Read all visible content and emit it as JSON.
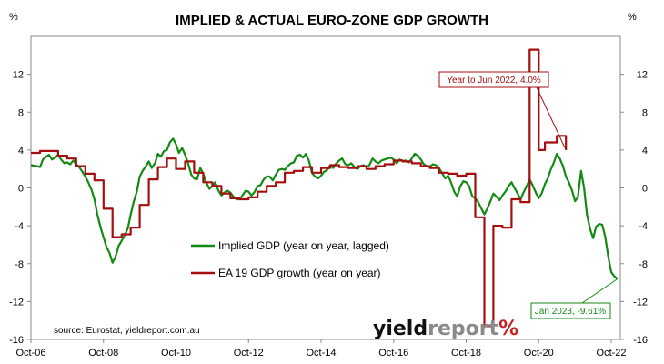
{
  "chart_data": {
    "type": "line",
    "title": "IMPLIED & ACTUAL EURO-ZONE GDP GROWTH",
    "ylabel_left": "%",
    "ylabel_right": "%",
    "ylim": [
      -16,
      16
    ],
    "yticks": [
      -16,
      -12,
      -8,
      -4,
      0,
      4,
      8,
      12
    ],
    "xlim": [
      2006.75,
      2023.0
    ],
    "xticks": [
      {
        "label": "Oct-06",
        "value": 2006.75
      },
      {
        "label": "Oct-08",
        "value": 2008.75
      },
      {
        "label": "Oct-10",
        "value": 2010.75
      },
      {
        "label": "Oct-12",
        "value": 2012.75
      },
      {
        "label": "Oct-14",
        "value": 2014.75
      },
      {
        "label": "Oct-16",
        "value": 2016.75
      },
      {
        "label": "Oct-18",
        "value": 2018.75
      },
      {
        "label": "Oct-20",
        "value": 2020.75
      },
      {
        "label": "Oct-22",
        "value": 2022.75
      }
    ],
    "legend": {
      "placement": "center-left"
    },
    "series": [
      {
        "name": "Implied GDP (year on year, lagged)",
        "color": "#138a13",
        "points": [
          [
            2006.75,
            2.4
          ],
          [
            2006.92,
            2.3
          ],
          [
            2007.0,
            2.2
          ],
          [
            2007.08,
            3.0
          ],
          [
            2007.17,
            3.3
          ],
          [
            2007.25,
            3.5
          ],
          [
            2007.33,
            3.0
          ],
          [
            2007.42,
            3.2
          ],
          [
            2007.5,
            3.5
          ],
          [
            2007.58,
            3.0
          ],
          [
            2007.67,
            2.6
          ],
          [
            2007.75,
            2.7
          ],
          [
            2007.83,
            2.5
          ],
          [
            2007.92,
            2.9
          ],
          [
            2008.0,
            2.5
          ],
          [
            2008.08,
            2.2
          ],
          [
            2008.17,
            1.7
          ],
          [
            2008.25,
            1.2
          ],
          [
            2008.33,
            0.6
          ],
          [
            2008.42,
            -0.2
          ],
          [
            2008.5,
            -1.2
          ],
          [
            2008.58,
            -2.8
          ],
          [
            2008.67,
            -4.2
          ],
          [
            2008.75,
            -5.2
          ],
          [
            2008.83,
            -6.2
          ],
          [
            2008.92,
            -6.9
          ],
          [
            2009.0,
            -7.9
          ],
          [
            2009.08,
            -7.3
          ],
          [
            2009.17,
            -6.1
          ],
          [
            2009.25,
            -5.6
          ],
          [
            2009.33,
            -5.0
          ],
          [
            2009.42,
            -4.3
          ],
          [
            2009.5,
            -2.8
          ],
          [
            2009.58,
            -1.5
          ],
          [
            2009.67,
            -0.4
          ],
          [
            2009.75,
            1.2
          ],
          [
            2009.83,
            1.8
          ],
          [
            2009.92,
            2.3
          ],
          [
            2010.0,
            2.8
          ],
          [
            2010.08,
            2.1
          ],
          [
            2010.17,
            2.6
          ],
          [
            2010.25,
            3.6
          ],
          [
            2010.33,
            3.3
          ],
          [
            2010.42,
            3.9
          ],
          [
            2010.5,
            4.0
          ],
          [
            2010.58,
            4.8
          ],
          [
            2010.67,
            5.2
          ],
          [
            2010.75,
            4.6
          ],
          [
            2010.83,
            3.7
          ],
          [
            2010.92,
            4.2
          ],
          [
            2011.0,
            3.5
          ],
          [
            2011.08,
            2.6
          ],
          [
            2011.17,
            1.4
          ],
          [
            2011.25,
            1.0
          ],
          [
            2011.33,
            0.9
          ],
          [
            2011.42,
            2.1
          ],
          [
            2011.5,
            1.5
          ],
          [
            2011.58,
            0.6
          ],
          [
            2011.67,
            -0.1
          ],
          [
            2011.75,
            0.2
          ],
          [
            2011.83,
            0.6
          ],
          [
            2011.92,
            -0.3
          ],
          [
            2012.0,
            -0.8
          ],
          [
            2012.08,
            -0.5
          ],
          [
            2012.17,
            -0.3
          ],
          [
            2012.25,
            -0.5
          ],
          [
            2012.33,
            -0.9
          ],
          [
            2012.42,
            -1.2
          ],
          [
            2012.5,
            -1.2
          ],
          [
            2012.58,
            -0.8
          ],
          [
            2012.67,
            -0.3
          ],
          [
            2012.75,
            -0.4
          ],
          [
            2012.83,
            -0.8
          ],
          [
            2012.92,
            -0.4
          ],
          [
            2013.0,
            0.2
          ],
          [
            2013.08,
            0.3
          ],
          [
            2013.17,
            0.9
          ],
          [
            2013.25,
            1.2
          ],
          [
            2013.33,
            1.2
          ],
          [
            2013.42,
            0.8
          ],
          [
            2013.5,
            1.4
          ],
          [
            2013.58,
            1.9
          ],
          [
            2013.67,
            2.0
          ],
          [
            2013.75,
            1.9
          ],
          [
            2013.83,
            2.3
          ],
          [
            2013.92,
            2.6
          ],
          [
            2014.0,
            2.7
          ],
          [
            2014.08,
            3.4
          ],
          [
            2014.17,
            3.5
          ],
          [
            2014.25,
            3.2
          ],
          [
            2014.33,
            3.6
          ],
          [
            2014.42,
            2.8
          ],
          [
            2014.5,
            1.6
          ],
          [
            2014.58,
            1.2
          ],
          [
            2014.67,
            1.0
          ],
          [
            2014.75,
            1.3
          ],
          [
            2014.83,
            1.7
          ],
          [
            2014.92,
            1.9
          ],
          [
            2015.0,
            2.4
          ],
          [
            2015.08,
            2.1
          ],
          [
            2015.17,
            2.6
          ],
          [
            2015.25,
            2.9
          ],
          [
            2015.33,
            3.1
          ],
          [
            2015.42,
            2.5
          ],
          [
            2015.5,
            2.4
          ],
          [
            2015.58,
            2.6
          ],
          [
            2015.67,
            2.2
          ],
          [
            2015.75,
            2.0
          ],
          [
            2015.83,
            2.3
          ],
          [
            2015.92,
            2.4
          ],
          [
            2016.0,
            2.2
          ],
          [
            2016.08,
            2.4
          ],
          [
            2016.17,
            3.1
          ],
          [
            2016.25,
            2.8
          ],
          [
            2016.33,
            2.6
          ],
          [
            2016.42,
            2.9
          ],
          [
            2016.5,
            3.0
          ],
          [
            2016.58,
            3.1
          ],
          [
            2016.67,
            3.2
          ],
          [
            2016.75,
            3.0
          ],
          [
            2016.83,
            2.6
          ],
          [
            2016.92,
            3.0
          ],
          [
            2017.0,
            2.8
          ],
          [
            2017.08,
            2.9
          ],
          [
            2017.17,
            2.7
          ],
          [
            2017.25,
            3.1
          ],
          [
            2017.33,
            3.6
          ],
          [
            2017.42,
            3.4
          ],
          [
            2017.5,
            3.0
          ],
          [
            2017.58,
            2.5
          ],
          [
            2017.67,
            2.3
          ],
          [
            2017.75,
            2.2
          ],
          [
            2017.83,
            2.5
          ],
          [
            2017.92,
            2.4
          ],
          [
            2018.0,
            2.1
          ],
          [
            2018.08,
            1.6
          ],
          [
            2018.17,
            1.0
          ],
          [
            2018.25,
            1.3
          ],
          [
            2018.33,
            0.6
          ],
          [
            2018.42,
            -0.4
          ],
          [
            2018.5,
            -0.9
          ],
          [
            2018.58,
            0.1
          ],
          [
            2018.67,
            0.7
          ],
          [
            2018.75,
            0.6
          ],
          [
            2018.83,
            0.2
          ],
          [
            2018.92,
            -0.9
          ],
          [
            2019.0,
            -1.1
          ],
          [
            2019.08,
            -1.5
          ],
          [
            2019.17,
            -2.2
          ],
          [
            2019.25,
            -2.8
          ],
          [
            2019.33,
            -2.2
          ],
          [
            2019.42,
            -1.4
          ],
          [
            2019.5,
            -0.6
          ],
          [
            2019.58,
            -0.9
          ],
          [
            2019.67,
            -1.3
          ],
          [
            2019.75,
            -0.8
          ],
          [
            2019.83,
            -0.4
          ],
          [
            2019.92,
            0.2
          ],
          [
            2020.0,
            0.6
          ],
          [
            2020.08,
            0.0
          ],
          [
            2020.17,
            -0.6
          ],
          [
            2020.25,
            -1.2
          ],
          [
            2020.33,
            -0.5
          ],
          [
            2020.42,
            0.2
          ],
          [
            2020.5,
            0.9
          ],
          [
            2020.58,
            0.3
          ],
          [
            2020.67,
            -0.5
          ],
          [
            2020.75,
            -1.1
          ],
          [
            2020.83,
            -0.6
          ],
          [
            2020.92,
            0.4
          ],
          [
            2021.0,
            1.0
          ],
          [
            2021.08,
            1.9
          ],
          [
            2021.17,
            2.7
          ],
          [
            2021.25,
            3.6
          ],
          [
            2021.33,
            3.1
          ],
          [
            2021.42,
            2.3
          ],
          [
            2021.5,
            1.2
          ],
          [
            2021.58,
            0.6
          ],
          [
            2021.67,
            -0.3
          ],
          [
            2021.75,
            -1.4
          ],
          [
            2021.83,
            -1.0
          ],
          [
            2021.92,
            1.8
          ],
          [
            2022.0,
            0.0
          ],
          [
            2022.08,
            -2.8
          ],
          [
            2022.17,
            -4.4
          ],
          [
            2022.25,
            -5.3
          ],
          [
            2022.33,
            -4.1
          ],
          [
            2022.42,
            -3.8
          ],
          [
            2022.5,
            -3.9
          ],
          [
            2022.58,
            -5.1
          ],
          [
            2022.67,
            -7.3
          ],
          [
            2022.75,
            -8.9
          ],
          [
            2022.83,
            -9.3
          ],
          [
            2022.92,
            -9.61
          ]
        ]
      },
      {
        "name": "EA 19 GDP growth (year on year)",
        "color": "#a50e0e",
        "points": [
          [
            2006.75,
            3.7
          ],
          [
            2007.0,
            3.9
          ],
          [
            2007.25,
            3.9
          ],
          [
            2007.5,
            3.4
          ],
          [
            2007.75,
            3.1
          ],
          [
            2008.0,
            2.3
          ],
          [
            2008.25,
            1.5
          ],
          [
            2008.5,
            0.8
          ],
          [
            2008.75,
            -2.2
          ],
          [
            2009.0,
            -5.2
          ],
          [
            2009.25,
            -4.9
          ],
          [
            2009.5,
            -4.2
          ],
          [
            2009.75,
            -1.8
          ],
          [
            2010.0,
            0.9
          ],
          [
            2010.25,
            2.2
          ],
          [
            2010.5,
            3.1
          ],
          [
            2010.75,
            2.0
          ],
          [
            2011.0,
            2.8
          ],
          [
            2011.25,
            1.6
          ],
          [
            2011.5,
            0.6
          ],
          [
            2011.75,
            0.2
          ],
          [
            2012.0,
            -0.6
          ],
          [
            2012.25,
            -1.1
          ],
          [
            2012.5,
            -1.2
          ],
          [
            2012.75,
            -1.0
          ],
          [
            2013.0,
            -0.4
          ],
          [
            2013.25,
            0.2
          ],
          [
            2013.5,
            0.6
          ],
          [
            2013.75,
            1.6
          ],
          [
            2014.0,
            1.8
          ],
          [
            2014.25,
            2.2
          ],
          [
            2014.5,
            1.6
          ],
          [
            2014.75,
            2.1
          ],
          [
            2015.0,
            2.4
          ],
          [
            2015.25,
            2.2
          ],
          [
            2015.5,
            2.1
          ],
          [
            2015.75,
            2.3
          ],
          [
            2016.0,
            2.0
          ],
          [
            2016.25,
            2.3
          ],
          [
            2016.5,
            2.5
          ],
          [
            2016.75,
            2.9
          ],
          [
            2017.0,
            2.8
          ],
          [
            2017.25,
            2.6
          ],
          [
            2017.5,
            2.3
          ],
          [
            2017.75,
            2.1
          ],
          [
            2018.0,
            1.6
          ],
          [
            2018.25,
            1.5
          ],
          [
            2018.5,
            1.3
          ],
          [
            2018.75,
            1.5
          ],
          [
            2019.0,
            -3.1
          ],
          [
            2019.25,
            -14.6
          ],
          [
            2019.5,
            -4.0
          ],
          [
            2019.75,
            -4.2
          ],
          [
            2020.0,
            -1.2
          ],
          [
            2020.25,
            -1.5
          ],
          [
            2020.5,
            14.6
          ],
          [
            2020.75,
            4.0
          ],
          [
            2020.92,
            4.8
          ],
          [
            2021.0,
            4.8
          ],
          [
            2021.25,
            5.5
          ],
          [
            2021.5,
            4.0
          ]
        ]
      }
    ],
    "annotations": [
      {
        "text": "Year to Jun 2022, 4.0%",
        "color": "#a50e0e",
        "x": 2021.5,
        "y": 4.0
      },
      {
        "text": "Jan 2023, -9.61%",
        "color": "#138a13",
        "x": 2022.92,
        "y": -9.61
      }
    ],
    "source": "source: Eurostat, yieldreport.com.au",
    "logo": {
      "word1": "yield",
      "word2": "report",
      "mark": "%"
    }
  }
}
